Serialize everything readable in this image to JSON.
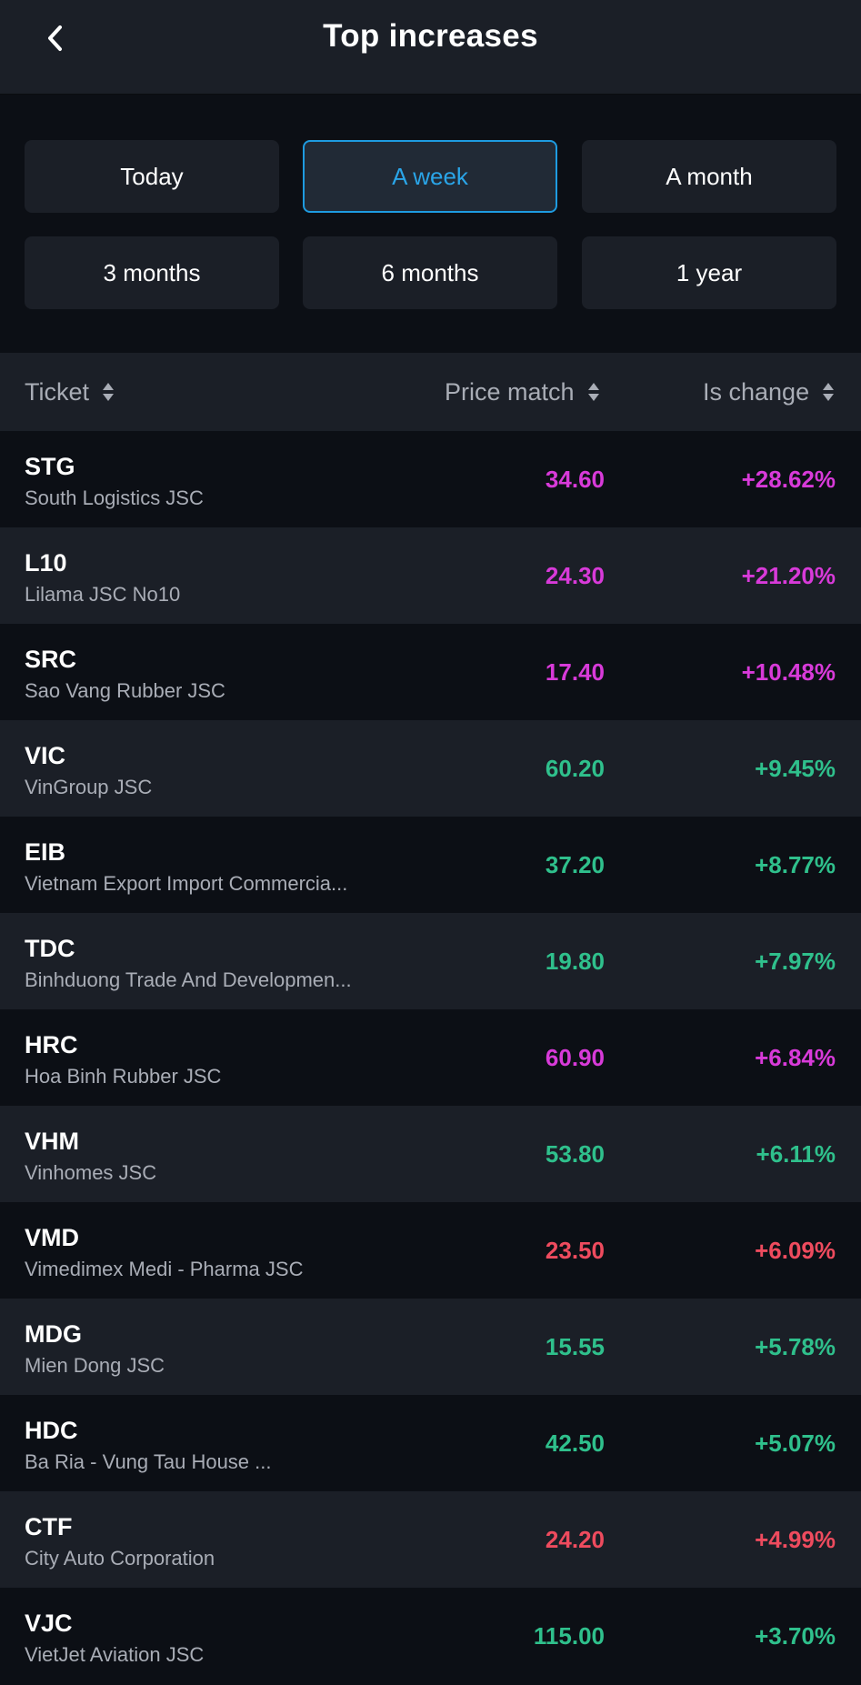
{
  "header": {
    "title": "Top increases",
    "back_icon": "chevron-left-icon"
  },
  "filters": {
    "selected": "A week",
    "options": [
      "Today",
      "A week",
      "A month",
      "3 months",
      "6 months",
      "1 year"
    ]
  },
  "columns": {
    "ticket": "Ticket",
    "price_match": "Price match",
    "is_change": "Is change",
    "sort_icon": "sort-updown-icon"
  },
  "colors": {
    "magenta": "#d83ad9",
    "green": "#2fc08c",
    "red": "#ee4b5e",
    "accent": "#1e9be0"
  },
  "rows": [
    {
      "ticker": "STG",
      "company": "South Logistics JSC",
      "price": "34.60",
      "change": "+28.62%",
      "color": "magenta"
    },
    {
      "ticker": "L10",
      "company": "Lilama JSC No10",
      "price": "24.30",
      "change": "+21.20%",
      "color": "magenta"
    },
    {
      "ticker": "SRC",
      "company": "Sao Vang Rubber JSC",
      "price": "17.40",
      "change": "+10.48%",
      "color": "magenta"
    },
    {
      "ticker": "VIC",
      "company": "VinGroup JSC",
      "price": "60.20",
      "change": "+9.45%",
      "color": "green"
    },
    {
      "ticker": "EIB",
      "company": "Vietnam Export Import Commercia...",
      "price": "37.20",
      "change": "+8.77%",
      "color": "green"
    },
    {
      "ticker": "TDC",
      "company": "Binhduong Trade And Developmen...",
      "price": "19.80",
      "change": "+7.97%",
      "color": "green"
    },
    {
      "ticker": "HRC",
      "company": "Hoa Binh Rubber JSC",
      "price": "60.90",
      "change": "+6.84%",
      "color": "magenta"
    },
    {
      "ticker": "VHM",
      "company": "Vinhomes JSC",
      "price": "53.80",
      "change": "+6.11%",
      "color": "green"
    },
    {
      "ticker": "VMD",
      "company": "Vimedimex Medi - Pharma JSC",
      "price": "23.50",
      "change": "+6.09%",
      "color": "red"
    },
    {
      "ticker": "MDG",
      "company": "Mien Dong JSC",
      "price": "15.55",
      "change": "+5.78%",
      "color": "green"
    },
    {
      "ticker": "HDC",
      "company": "Ba Ria - Vung Tau House ...",
      "price": "42.50",
      "change": "+5.07%",
      "color": "green"
    },
    {
      "ticker": "CTF",
      "company": "City Auto Corporation",
      "price": "24.20",
      "change": "+4.99%",
      "color": "red"
    },
    {
      "ticker": "VJC",
      "company": "VietJet Aviation JSC",
      "price": "115.00",
      "change": "+3.70%",
      "color": "green"
    }
  ]
}
